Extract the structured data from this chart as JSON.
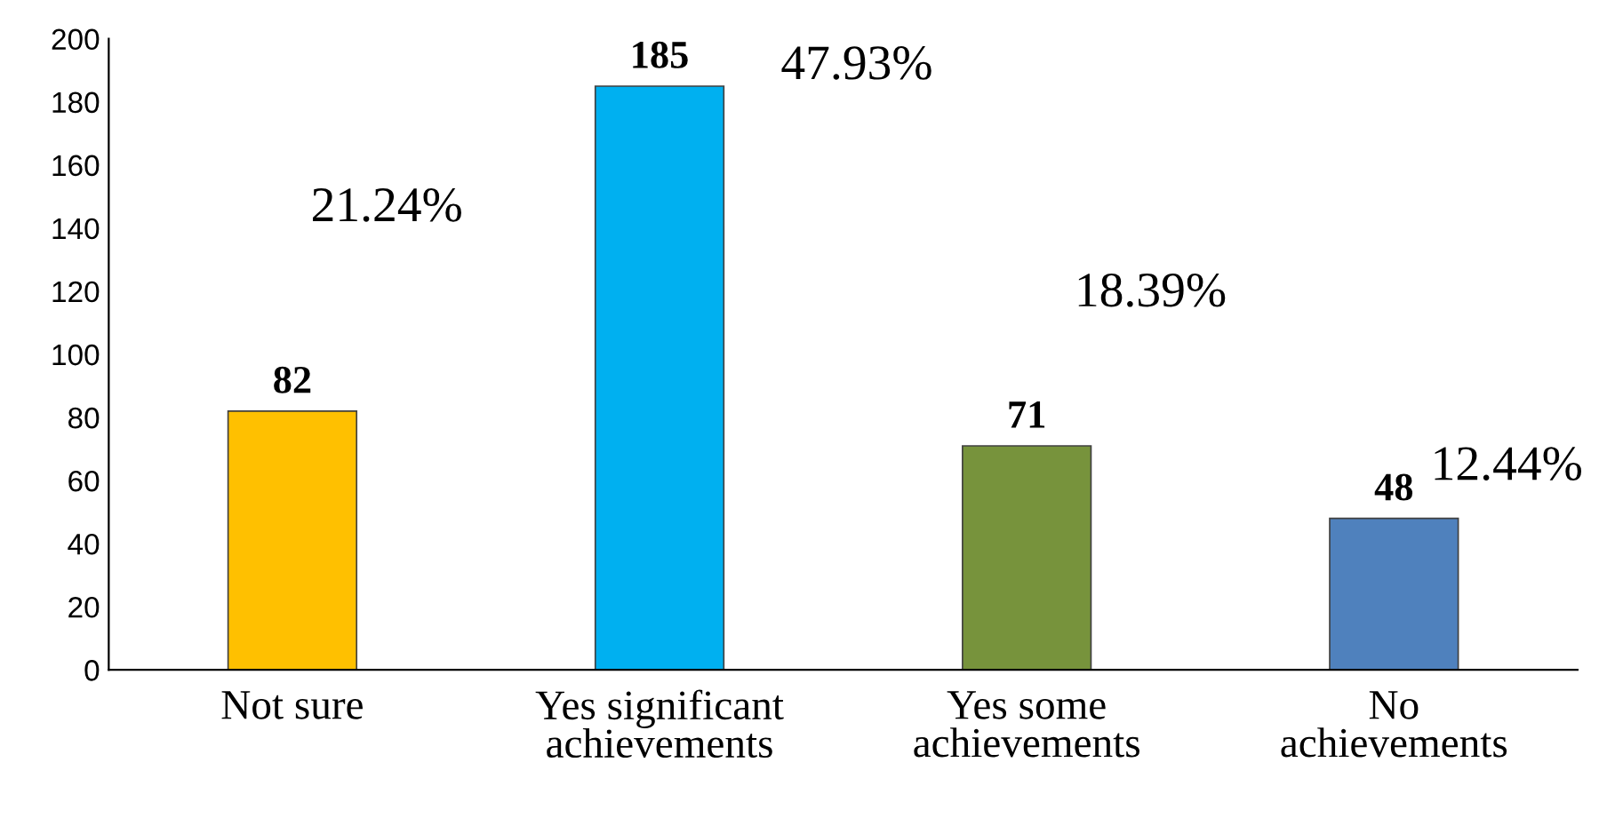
{
  "chart_data": {
    "type": "bar",
    "categories": [
      "Not sure",
      "Yes significant\nachievements",
      "Yes some\nachievements",
      "No\nachievements"
    ],
    "values": [
      82,
      185,
      71,
      48
    ],
    "colors": [
      "#ffc000",
      "#00b0f0",
      "#77933c",
      "#4f81bd"
    ],
    "ylim": [
      0,
      200
    ],
    "yticks": [
      0,
      20,
      40,
      60,
      80,
      100,
      120,
      140,
      160,
      180,
      200
    ],
    "grid": false,
    "legend": false,
    "data_labels": true,
    "annotations": [
      "21.24%",
      "47.93%",
      "18.39%",
      "12.44%"
    ]
  }
}
